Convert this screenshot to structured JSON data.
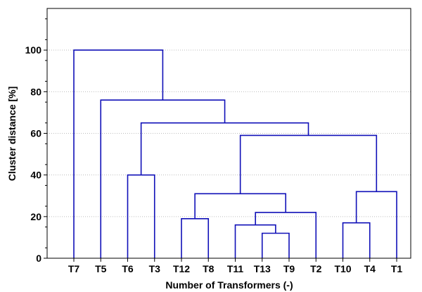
{
  "chart_data": {
    "type": "dendrogram",
    "title": "",
    "xlabel": "Number of Transformers (-)",
    "ylabel": "Cluster distance [%]",
    "ylim": [
      0,
      120
    ],
    "yticks": [
      0,
      20,
      40,
      60,
      80,
      100
    ],
    "grid": true,
    "leaves": [
      "T7",
      "T5",
      "T6",
      "T3",
      "T12",
      "T8",
      "T11",
      "T13",
      "T9",
      "T2",
      "T10",
      "T4",
      "T1"
    ],
    "merges": [
      {
        "left": "T13",
        "right": "T9",
        "height": 12
      },
      {
        "left": "T11",
        "right": "C1",
        "height": 16
      },
      {
        "left": "T10",
        "right": "T4",
        "height": 17
      },
      {
        "left": "T12",
        "right": "T8",
        "height": 19
      },
      {
        "left": "C2",
        "right": "T2",
        "height": 22
      },
      {
        "left": "C4",
        "right": "C5",
        "height": 31
      },
      {
        "left": "C3",
        "right": "T1",
        "height": 32
      },
      {
        "left": "T6",
        "right": "T3",
        "height": 40
      },
      {
        "left": "C6",
        "right": "C7",
        "height": 59
      },
      {
        "left": "C8",
        "right": "C9",
        "height": 65
      },
      {
        "left": "T5",
        "right": "C10",
        "height": 76
      },
      {
        "left": "T7",
        "right": "C11",
        "height": 100
      }
    ]
  }
}
